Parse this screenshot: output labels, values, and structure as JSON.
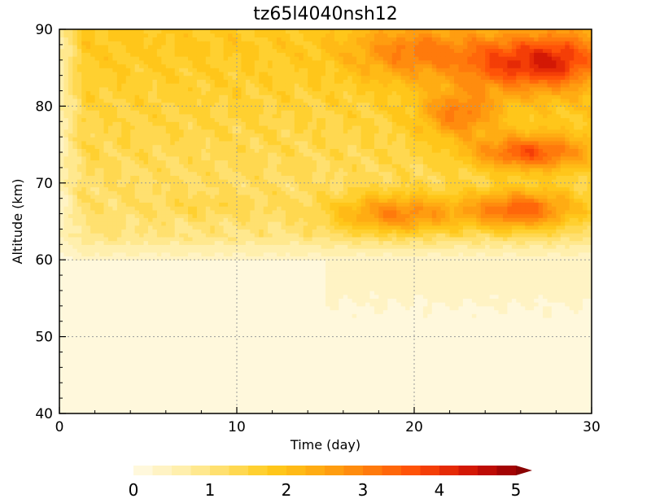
{
  "chart_data": {
    "type": "heatmap",
    "title": "tz65l4040nsh12",
    "xlabel": "Time (day)",
    "ylabel": "Altitude (km)",
    "xlim": [
      0,
      30
    ],
    "ylim": [
      40,
      90
    ],
    "x_ticks": [
      0,
      10,
      20,
      30
    ],
    "y_ticks": [
      40,
      50,
      60,
      70,
      80,
      90
    ],
    "x_tick_labels": [
      "0",
      "10",
      "20",
      "30"
    ],
    "y_tick_labels": [
      "40",
      "50",
      "60",
      "70",
      "80",
      "90"
    ],
    "grid": true,
    "colorbar": {
      "orientation": "horizontal",
      "placement": "bottom",
      "range": [
        0,
        5
      ],
      "levels": 20,
      "extend": "max",
      "tick_values": [
        0,
        1,
        2,
        3,
        4,
        5
      ],
      "tick_labels": [
        "0",
        "1",
        "2",
        "3",
        "4",
        "5"
      ],
      "colors": [
        "#fff8dc",
        "#fff3c4",
        "#ffefad",
        "#ffe88e",
        "#ffe06f",
        "#ffd850",
        "#ffd030",
        "#ffc61a",
        "#ffba16",
        "#ffac13",
        "#ff9d10",
        "#ff8c0e",
        "#ff7a0c",
        "#ff670a",
        "#ff5308",
        "#f43e07",
        "#e52a06",
        "#d31805",
        "#bd0c05",
        "#a30404",
        "#8a0202"
      ]
    },
    "grid_time": [
      0,
      1,
      2,
      3,
      4,
      5,
      6,
      7,
      8,
      9,
      10,
      11,
      12,
      13,
      14,
      15,
      16,
      17,
      18,
      19,
      20,
      21,
      22,
      23,
      24,
      25,
      26,
      27,
      28,
      29,
      30
    ],
    "grid_altitude": [
      40,
      42.5,
      45,
      47.5,
      50,
      52.5,
      55,
      57.5,
      60,
      62.5,
      65,
      67.5,
      70,
      72.5,
      75,
      77.5,
      80,
      82.5,
      85,
      87.5,
      90
    ],
    "anomalies": [
      {
        "x": 19.0,
        "y": 66.0,
        "sx": 2.5,
        "sy": 1.8,
        "amp": 1.8
      },
      {
        "x": 26.0,
        "y": 66.5,
        "sx": 2.2,
        "sy": 1.8,
        "amp": 2.2
      },
      {
        "x": 26.5,
        "y": 74.0,
        "sx": 2.2,
        "sy": 1.6,
        "amp": 2.0
      },
      {
        "x": 22.5,
        "y": 79.0,
        "sx": 1.5,
        "sy": 2.2,
        "amp": 1.4
      },
      {
        "x": 25.5,
        "y": 85.5,
        "sx": 2.0,
        "sy": 2.5,
        "amp": 1.8
      },
      {
        "x": 28.5,
        "y": 86.0,
        "sx": 1.5,
        "sy": 2.5,
        "amp": 1.5
      },
      {
        "x": 20.0,
        "y": 87.0,
        "sx": 2.5,
        "sy": 2.5,
        "amp": 1.2
      },
      {
        "x": 8.5,
        "y": 67.0,
        "sx": 3.0,
        "sy": 1.2,
        "amp": 0.3
      }
    ]
  }
}
